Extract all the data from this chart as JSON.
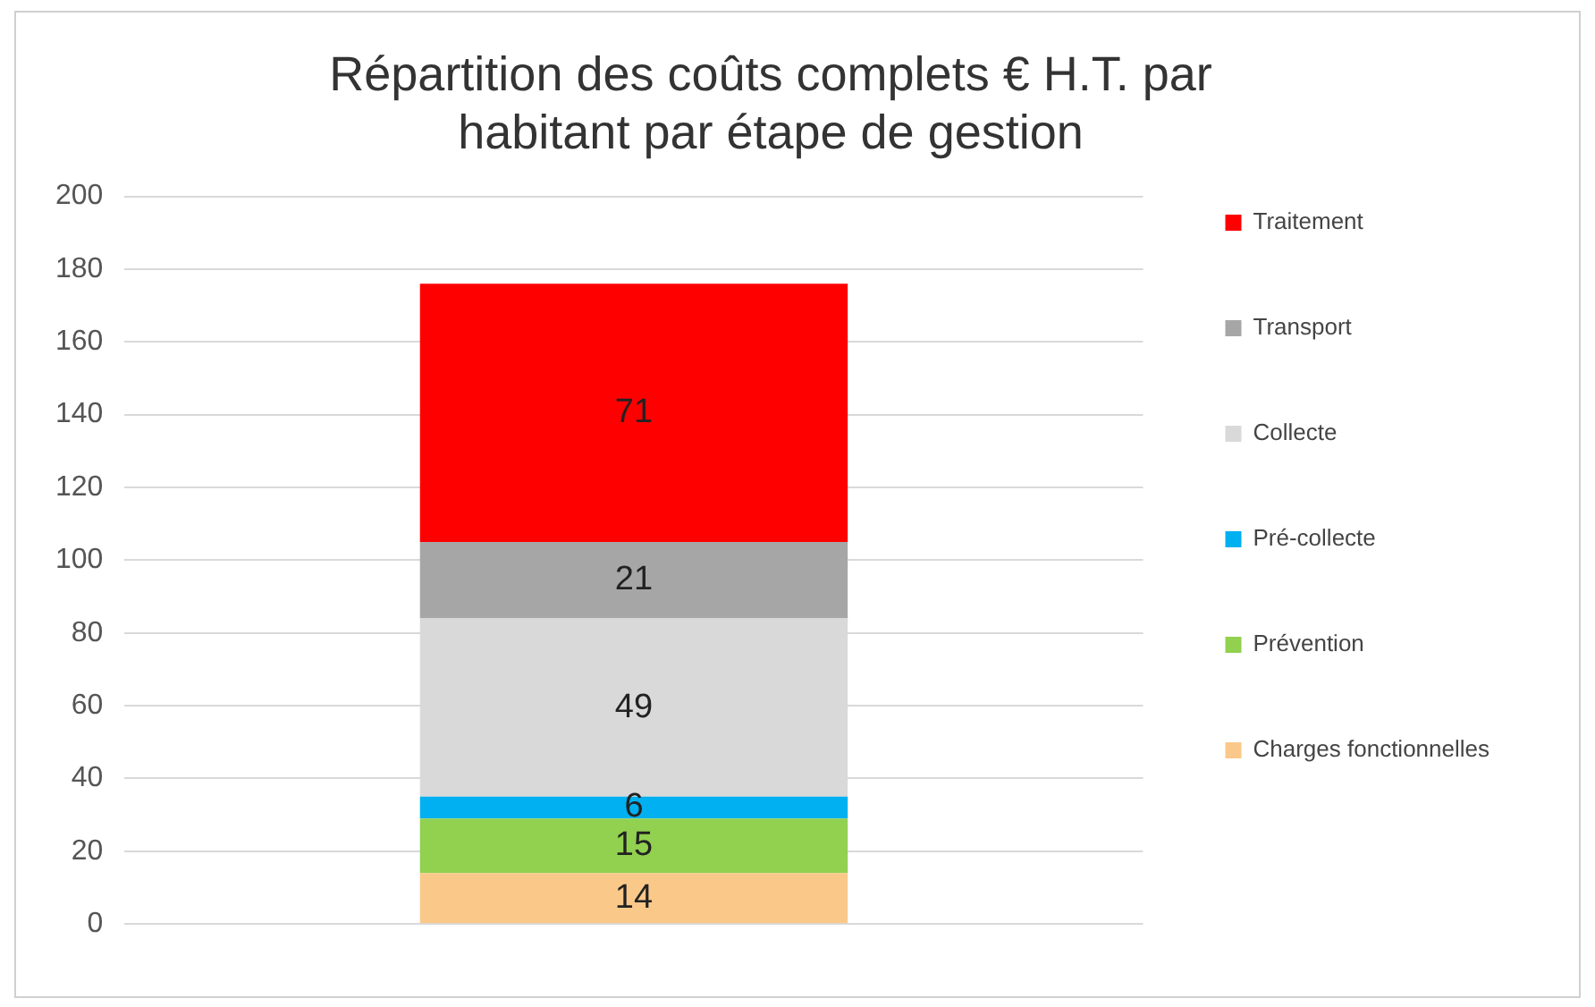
{
  "chart_data": {
    "type": "bar",
    "title": "Répartition des coûts complets € H.T. par habitant par étape de gestion",
    "categories": [
      null
    ],
    "stacked": true,
    "series": [
      {
        "name": "Charges fonctionnelles",
        "color": "#fac98a",
        "values": [
          14
        ]
      },
      {
        "name": "Prévention",
        "color": "#92d050",
        "values": [
          15
        ]
      },
      {
        "name": "Pré-collecte",
        "color": "#00b0f0",
        "values": [
          6
        ]
      },
      {
        "name": "Collecte",
        "color": "#d9d9d9",
        "values": [
          49
        ]
      },
      {
        "name": "Transport",
        "color": "#a6a6a6",
        "values": [
          21
        ]
      },
      {
        "name": "Traitement",
        "color": "#ff0000",
        "values": [
          71
        ]
      }
    ],
    "ylim": [
      0,
      200
    ],
    "yticks": [
      0,
      20,
      40,
      60,
      80,
      100,
      120,
      140,
      160,
      180,
      200
    ],
    "grid": "y",
    "legend": "right",
    "data_labels": true
  }
}
